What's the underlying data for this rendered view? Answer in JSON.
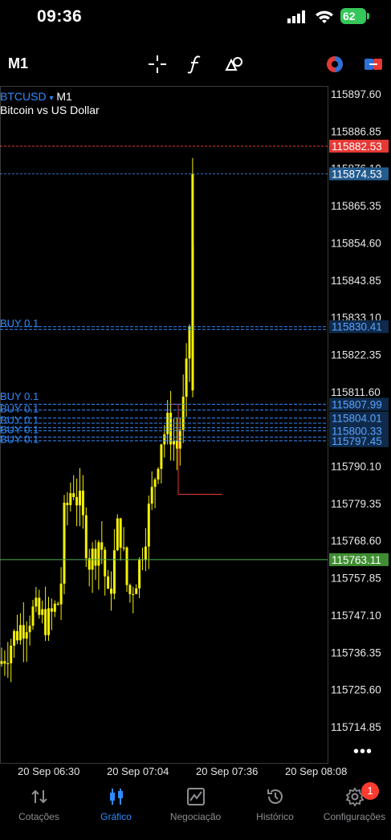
{
  "status": {
    "time": "09:36",
    "battery": "62"
  },
  "toolbar": {
    "timeframe": "M1",
    "icons": [
      "crosshair-icon",
      "function-icon",
      "objects-icon",
      "color-icon",
      "trade-toggle-icon"
    ]
  },
  "symbol": {
    "name": "BTCUSD",
    "arrow": "▾",
    "timeframe": "M1",
    "description": "Bitcoin vs US Dollar"
  },
  "price_axis": [
    "115897.60",
    "115886.85",
    "115876.10",
    "115865.35",
    "115854.60",
    "115843.85",
    "115833.10",
    "115822.35",
    "115811.60",
    "115800.85",
    "115790.10",
    "115779.35",
    "115768.60",
    "115757.85",
    "115747.10",
    "115736.35",
    "115725.60",
    "115714.85"
  ],
  "price_labels": {
    "ask": "115882.53",
    "bid": "115874.53",
    "order_1": "115830.41",
    "order_2": "115807.99",
    "order_3": "115800.33",
    "order_partial": "115804.01",
    "order_low": "115797.45",
    "sl_level": "115763.11"
  },
  "order_labels": {
    "buy_1": "BUY 0.1",
    "buy_2": "BUY 0.1",
    "buy_3": "BUY 0.1",
    "buy_4": "BUY 0.1",
    "buy_5": "BUY 0.1",
    "buy_6": "BUY 0.1"
  },
  "time_axis": [
    "20 Sep 06:30",
    "20 Sep 07:04",
    "20 Sep 07:36",
    "20 Sep 08:08"
  ],
  "colors": {
    "ask": "#e53935",
    "bid": "#2f6fb5",
    "order": "#2f8cff",
    "sl": "#4caf50",
    "candle": "#f5f100"
  },
  "tabs": [
    {
      "label": "Cotações",
      "icon": "quotes-icon"
    },
    {
      "label": "Gráfico",
      "icon": "chart-icon"
    },
    {
      "label": "Negociação",
      "icon": "trade-icon"
    },
    {
      "label": "Histórico",
      "icon": "history-icon"
    },
    {
      "label": "Configurações",
      "icon": "settings-icon"
    }
  ],
  "badge": "1",
  "chart_data": {
    "type": "candlestick",
    "symbol": "BTCUSD",
    "timeframe": "M1",
    "ylim": [
      115705,
      115900
    ],
    "x": [
      "20 Sep 06:30",
      "20 Sep 07:04",
      "20 Sep 07:36",
      "20 Sep 08:08"
    ],
    "last_close": 115874.53,
    "high": 115879,
    "low": 115722
  }
}
